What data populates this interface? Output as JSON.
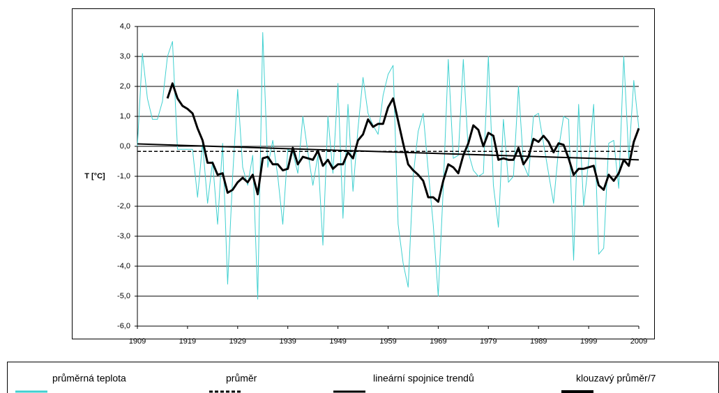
{
  "chart_data": {
    "type": "line",
    "y_label": "T [°C]",
    "x": [
      1909,
      1910,
      1911,
      1912,
      1913,
      1914,
      1915,
      1916,
      1917,
      1918,
      1919,
      1920,
      1921,
      1922,
      1923,
      1924,
      1925,
      1926,
      1927,
      1928,
      1929,
      1930,
      1931,
      1932,
      1933,
      1934,
      1935,
      1936,
      1937,
      1938,
      1939,
      1940,
      1941,
      1942,
      1943,
      1944,
      1945,
      1946,
      1947,
      1948,
      1949,
      1950,
      1951,
      1952,
      1953,
      1954,
      1955,
      1956,
      1957,
      1958,
      1959,
      1960,
      1961,
      1962,
      1963,
      1964,
      1965,
      1966,
      1967,
      1968,
      1969,
      1970,
      1971,
      1972,
      1973,
      1974,
      1975,
      1976,
      1977,
      1978,
      1979,
      1980,
      1981,
      1982,
      1983,
      1984,
      1985,
      1986,
      1987,
      1988,
      1989,
      1990,
      1991,
      1992,
      1993,
      1994,
      1995,
      1996,
      1997,
      1998,
      1999,
      2000,
      2001,
      2002,
      2003,
      2004,
      2005,
      2006,
      2007,
      2008,
      2009
    ],
    "series": [
      {
        "name": "průměrná teplota",
        "color": "#40d0d0",
        "width": 1,
        "values": [
          0.0,
          3.1,
          1.6,
          0.9,
          0.9,
          1.5,
          3.0,
          3.5,
          -0.1,
          -0.1,
          -0.1,
          -0.1,
          -1.7,
          0.1,
          -1.9,
          -0.5,
          -2.6,
          0.1,
          -4.6,
          -1.0,
          1.9,
          -0.7,
          -1.3,
          -0.3,
          -5.1,
          3.8,
          -0.7,
          0.2,
          -1.0,
          -2.6,
          -0.1,
          -0.2,
          -0.9,
          1.0,
          -0.2,
          -1.3,
          -0.3,
          -3.3,
          1.0,
          -0.9,
          2.1,
          -2.4,
          1.4,
          -1.5,
          0.6,
          2.3,
          1.1,
          0.7,
          0.4,
          1.7,
          2.4,
          2.7,
          -2.6,
          -3.9,
          -4.7,
          -1.0,
          0.5,
          1.1,
          -0.8,
          -2.6,
          -5.0,
          -1.4,
          2.9,
          -0.4,
          -0.3,
          2.9,
          -0.2,
          -0.8,
          -1.0,
          -0.9,
          3.0,
          -1.3,
          -2.7,
          0.9,
          -1.2,
          -1.0,
          2.0,
          -0.6,
          -1.0,
          1.0,
          1.1,
          0.1,
          -0.9,
          -1.9,
          -0.1,
          1.0,
          0.9,
          -3.8,
          1.4,
          -2.0,
          -0.5,
          1.4,
          -3.6,
          -3.4,
          0.1,
          0.2,
          -1.4,
          3.0,
          -0.4,
          2.2,
          0.6
        ]
      },
      {
        "name": "průměr",
        "color": "#000000",
        "width": 1.5,
        "dashed": true,
        "x": [
          1909,
          2009
        ],
        "values": [
          -0.17,
          -0.17
        ]
      },
      {
        "name": "lineární spojnice trendů",
        "color": "#000000",
        "width": 2,
        "x": [
          1909,
          2009
        ],
        "values": [
          0.08,
          -0.45
        ]
      },
      {
        "name": "klouzavý průměr/7",
        "color": "#000000",
        "width": 3,
        "values": [
          null,
          null,
          null,
          null,
          null,
          null,
          1.6,
          2.1,
          1.6,
          1.35,
          1.25,
          1.1,
          0.6,
          0.2,
          -0.55,
          -0.55,
          -0.95,
          -0.9,
          -1.55,
          -1.45,
          -1.2,
          -1.05,
          -1.2,
          -0.95,
          -1.6,
          -0.4,
          -0.35,
          -0.6,
          -0.6,
          -0.8,
          -0.75,
          -0.05,
          -0.6,
          -0.35,
          -0.4,
          -0.45,
          -0.15,
          -0.65,
          -0.45,
          -0.75,
          -0.6,
          -0.6,
          -0.2,
          -0.4,
          0.2,
          0.4,
          0.9,
          0.65,
          0.75,
          0.75,
          1.3,
          1.6,
          0.85,
          0.1,
          -0.6,
          -0.8,
          -0.95,
          -1.15,
          -1.7,
          -1.7,
          -1.85,
          -1.15,
          -0.6,
          -0.7,
          -0.9,
          -0.3,
          0.1,
          0.7,
          0.55,
          0.0,
          0.45,
          0.35,
          -0.45,
          -0.4,
          -0.45,
          -0.45,
          -0.05,
          -0.6,
          -0.35,
          0.25,
          0.15,
          0.35,
          0.15,
          -0.2,
          0.1,
          0.05,
          -0.4,
          -0.95,
          -0.75,
          -0.75,
          -0.7,
          -0.65,
          -1.3,
          -1.45,
          -0.95,
          -1.15,
          -0.9,
          -0.45,
          -0.65,
          0.15,
          0.6
        ]
      }
    ],
    "xlim": [
      1909,
      2009
    ],
    "xticks": [
      1909,
      1919,
      1929,
      1939,
      1949,
      1959,
      1969,
      1979,
      1989,
      1999,
      2009
    ],
    "ylim": [
      -6,
      4
    ],
    "yticks": [
      {
        "value": -6,
        "label": "-6,0"
      },
      {
        "value": -5,
        "label": "-5,0"
      },
      {
        "value": -4,
        "label": "-4,0"
      },
      {
        "value": -3,
        "label": "-3,0"
      },
      {
        "value": -2,
        "label": "-2,0"
      },
      {
        "value": -1,
        "label": "-1,0"
      },
      {
        "value": 0,
        "label": "0,0"
      },
      {
        "value": 1,
        "label": "1,0"
      },
      {
        "value": 2,
        "label": "2,0"
      },
      {
        "value": 3,
        "label": "3,0"
      },
      {
        "value": 4,
        "label": "4,0"
      }
    ],
    "grid": true,
    "legend": "bottom"
  }
}
